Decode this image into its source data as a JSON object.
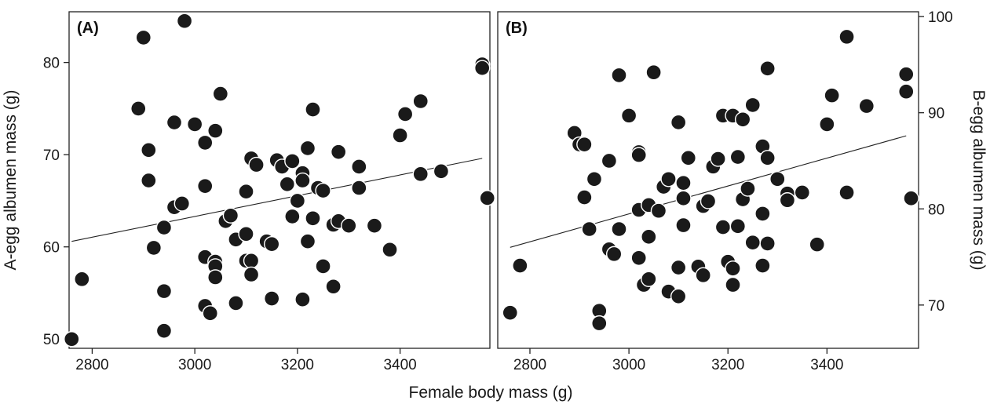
{
  "figure": {
    "shared_xlabel": "Female body mass (g)"
  },
  "chart_data": [
    {
      "type": "scatter",
      "panel_label": "(A)",
      "xlabel": "Female body mass (g)",
      "ylabel": "A-egg albumen mass (g)",
      "xlim": [
        2755,
        3575
      ],
      "ylim": [
        49,
        85.5
      ],
      "xticks": [
        2800,
        3000,
        3200,
        3400
      ],
      "yticks": [
        50,
        60,
        70,
        80
      ],
      "y_axis_side": "left",
      "grid": false,
      "point_color": "#1a1a1a",
      "points": [
        [
          2760,
          50.0
        ],
        [
          2780,
          56.5
        ],
        [
          2890,
          75.0
        ],
        [
          2900,
          82.7
        ],
        [
          2910,
          70.5
        ],
        [
          2910,
          67.2
        ],
        [
          2920,
          59.9
        ],
        [
          2940,
          62.1
        ],
        [
          2940,
          55.2
        ],
        [
          2940,
          50.9
        ],
        [
          2960,
          64.3
        ],
        [
          2960,
          73.5
        ],
        [
          2975,
          64.7
        ],
        [
          2980,
          84.5
        ],
        [
          3000,
          73.3
        ],
        [
          3020,
          71.3
        ],
        [
          3020,
          66.6
        ],
        [
          3020,
          58.9
        ],
        [
          3020,
          53.6
        ],
        [
          3030,
          52.8
        ],
        [
          3040,
          72.6
        ],
        [
          3040,
          58.4
        ],
        [
          3040,
          57.9
        ],
        [
          3040,
          56.7
        ],
        [
          3050,
          76.6
        ],
        [
          3060,
          62.8
        ],
        [
          3070,
          63.4
        ],
        [
          3080,
          60.8
        ],
        [
          3080,
          53.9
        ],
        [
          3100,
          66.0
        ],
        [
          3100,
          61.4
        ],
        [
          3100,
          58.5
        ],
        [
          3110,
          69.6
        ],
        [
          3110,
          58.5
        ],
        [
          3110,
          57.0
        ],
        [
          3120,
          68.9
        ],
        [
          3140,
          60.6
        ],
        [
          3150,
          60.3
        ],
        [
          3150,
          54.4
        ],
        [
          3160,
          69.4
        ],
        [
          3170,
          68.7
        ],
        [
          3180,
          66.8
        ],
        [
          3190,
          69.3
        ],
        [
          3190,
          63.3
        ],
        [
          3200,
          65.0
        ],
        [
          3210,
          68.0
        ],
        [
          3210,
          67.2
        ],
        [
          3210,
          54.3
        ],
        [
          3220,
          70.7
        ],
        [
          3220,
          60.6
        ],
        [
          3230,
          74.9
        ],
        [
          3230,
          63.1
        ],
        [
          3240,
          66.4
        ],
        [
          3250,
          66.1
        ],
        [
          3250,
          57.9
        ],
        [
          3270,
          62.4
        ],
        [
          3270,
          55.7
        ],
        [
          3280,
          70.3
        ],
        [
          3280,
          62.8
        ],
        [
          3300,
          62.3
        ],
        [
          3320,
          68.7
        ],
        [
          3320,
          66.4
        ],
        [
          3350,
          62.3
        ],
        [
          3380,
          59.7
        ],
        [
          3400,
          72.1
        ],
        [
          3410,
          74.4
        ],
        [
          3440,
          75.8
        ],
        [
          3440,
          67.9
        ],
        [
          3480,
          68.2
        ],
        [
          3560,
          79.8
        ],
        [
          3560,
          79.4
        ],
        [
          3570,
          65.3
        ]
      ],
      "regression": {
        "x": [
          2760,
          3560
        ],
        "y": [
          60.6,
          69.6
        ]
      }
    },
    {
      "type": "scatter",
      "panel_label": "(B)",
      "xlabel": "Female body mass (g)",
      "ylabel": "B-egg albumen mass (g)",
      "xlim": [
        2735,
        3585
      ],
      "ylim": [
        65.5,
        100.5
      ],
      "xticks": [
        2800,
        3000,
        3200,
        3400
      ],
      "yticks": [
        70,
        80,
        90,
        100
      ],
      "y_axis_side": "right",
      "grid": false,
      "point_color": "#1a1a1a",
      "points": [
        [
          2760,
          69.2
        ],
        [
          2780,
          74.1
        ],
        [
          2890,
          87.9
        ],
        [
          2900,
          86.7
        ],
        [
          2910,
          86.7
        ],
        [
          2910,
          81.2
        ],
        [
          2920,
          77.9
        ],
        [
          2930,
          83.1
        ],
        [
          2940,
          69.4
        ],
        [
          2940,
          68.1
        ],
        [
          2960,
          85.0
        ],
        [
          2960,
          75.8
        ],
        [
          2970,
          75.3
        ],
        [
          2980,
          77.9
        ],
        [
          2980,
          93.9
        ],
        [
          3000,
          89.7
        ],
        [
          3020,
          85.9
        ],
        [
          3020,
          85.6
        ],
        [
          3020,
          79.9
        ],
        [
          3020,
          74.9
        ],
        [
          3030,
          72.1
        ],
        [
          3040,
          80.4
        ],
        [
          3040,
          77.1
        ],
        [
          3040,
          72.7
        ],
        [
          3050,
          94.2
        ],
        [
          3060,
          79.8
        ],
        [
          3070,
          82.3
        ],
        [
          3080,
          83.1
        ],
        [
          3080,
          71.4
        ],
        [
          3100,
          89.0
        ],
        [
          3100,
          73.9
        ],
        [
          3100,
          70.9
        ],
        [
          3110,
          82.7
        ],
        [
          3110,
          81.1
        ],
        [
          3110,
          78.3
        ],
        [
          3120,
          85.3
        ],
        [
          3140,
          74.0
        ],
        [
          3150,
          80.3
        ],
        [
          3150,
          73.1
        ],
        [
          3160,
          80.8
        ],
        [
          3170,
          84.4
        ],
        [
          3180,
          85.2
        ],
        [
          3190,
          89.7
        ],
        [
          3190,
          78.1
        ],
        [
          3200,
          74.5
        ],
        [
          3210,
          89.7
        ],
        [
          3210,
          73.8
        ],
        [
          3210,
          72.1
        ],
        [
          3220,
          85.4
        ],
        [
          3220,
          78.2
        ],
        [
          3230,
          89.3
        ],
        [
          3230,
          81.0
        ],
        [
          3240,
          82.1
        ],
        [
          3250,
          90.8
        ],
        [
          3250,
          76.5
        ],
        [
          3270,
          86.5
        ],
        [
          3270,
          79.5
        ],
        [
          3270,
          74.1
        ],
        [
          3280,
          94.6
        ],
        [
          3280,
          85.3
        ],
        [
          3280,
          76.4
        ],
        [
          3300,
          83.1
        ],
        [
          3320,
          81.6
        ],
        [
          3320,
          80.9
        ],
        [
          3350,
          81.7
        ],
        [
          3380,
          76.3
        ],
        [
          3400,
          88.8
        ],
        [
          3410,
          91.8
        ],
        [
          3440,
          97.9
        ],
        [
          3440,
          81.7
        ],
        [
          3480,
          90.7
        ],
        [
          3560,
          94.0
        ],
        [
          3560,
          92.2
        ],
        [
          3570,
          81.1
        ]
      ],
      "regression": {
        "x": [
          2760,
          3560
        ],
        "y": [
          76.0,
          87.6
        ]
      }
    }
  ]
}
